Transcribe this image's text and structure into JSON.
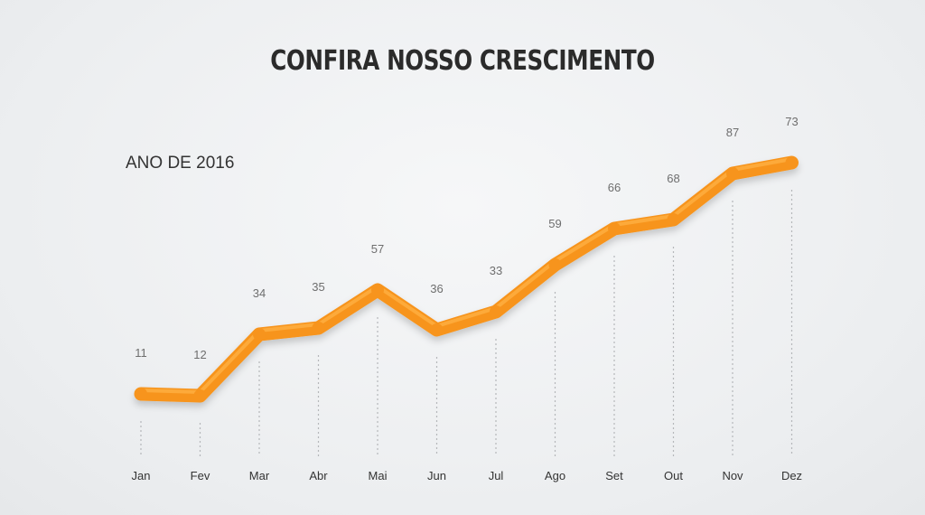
{
  "chart_data": {
    "type": "line",
    "title": "CONFIRA NOSSO CRESCIMENTO",
    "subtitle": "ANO DE 2016",
    "categories": [
      "Jan",
      "Fev",
      "Mar",
      "Abr",
      "Mai",
      "Jun",
      "Jul",
      "Ago",
      "Set",
      "Out",
      "Nov",
      "Dez"
    ],
    "series": [
      {
        "values": [
          11,
          12,
          34,
          35,
          57,
          36,
          33,
          59,
          66,
          68,
          87,
          73
        ]
      }
    ],
    "xlabel": "",
    "ylabel": "",
    "grid": false,
    "colors": {
      "line": "#f7941d",
      "line_highlight": "#ffb347",
      "drop_lines": "#b5b7ba"
    }
  }
}
